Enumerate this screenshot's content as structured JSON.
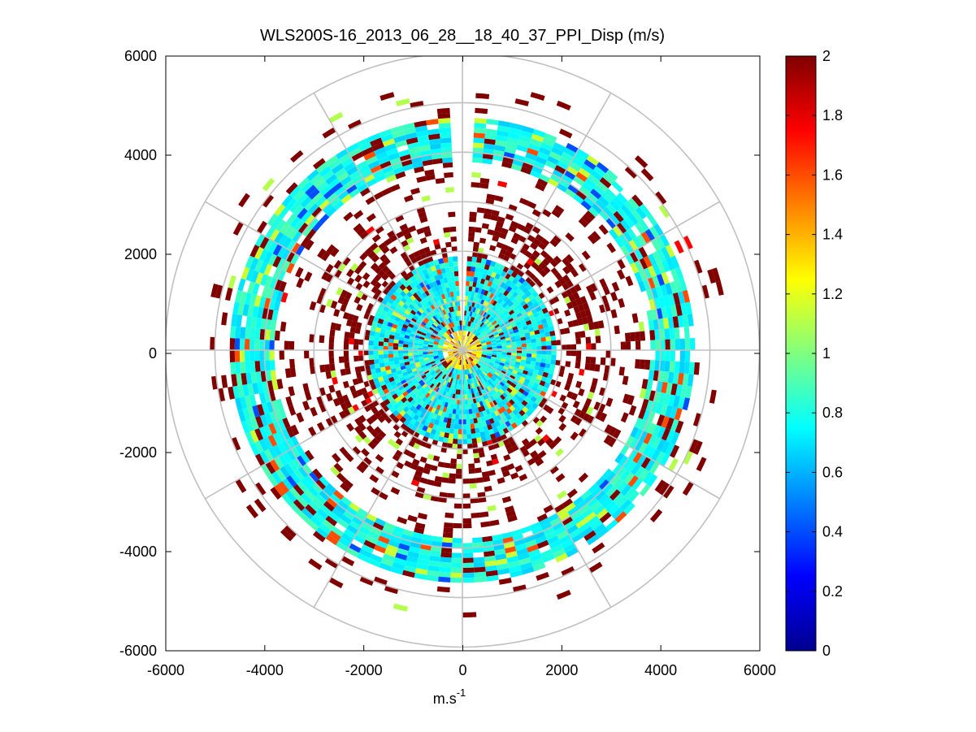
{
  "chart_data": {
    "type": "heatmap",
    "subtype": "polar-ppi",
    "title": "WLS200S-16_2013_06_28__18_40_37_PPI_Disp (m/s)",
    "xlabel": "m.s",
    "xlabel_superscript": "-1",
    "ylabel": "",
    "xlim": [
      -6000,
      6000
    ],
    "ylim": [
      -6000,
      6000
    ],
    "xticks": [
      -6000,
      -4000,
      -2000,
      0,
      2000,
      4000,
      6000
    ],
    "yticks": [
      6000,
      4000,
      2000,
      0,
      -2000,
      -4000,
      -6000
    ],
    "xtick_labels": [
      "-6000",
      "-4000",
      "-2000",
      "0",
      "2000",
      "4000",
      "6000"
    ],
    "ytick_labels": [
      "6000",
      "4000",
      "2000",
      "0",
      "-2000",
      "-4000",
      "-6000"
    ],
    "polar_grid": {
      "rings": [
        1000,
        2000,
        3000,
        4000,
        5000,
        6000
      ],
      "spokes_deg": [
        0,
        30,
        60,
        90,
        120,
        150,
        180,
        210,
        240,
        270,
        300,
        330
      ]
    },
    "gap_sector_deg": [
      -3,
      3
    ],
    "colorbar": {
      "range": [
        0,
        2
      ],
      "ticks": [
        0,
        0.2,
        0.4,
        0.6,
        0.8,
        1,
        1.2,
        1.4,
        1.6,
        1.8,
        2
      ],
      "tick_labels": [
        "0",
        "0.2",
        "0.4",
        "0.6",
        "0.8",
        "1",
        "1.2",
        "1.4",
        "1.6",
        "1.8",
        "2"
      ],
      "colormap": "jet"
    },
    "range_bands": [
      {
        "r": [
          0,
          400
        ],
        "dominant_value": 1.3,
        "coverage": 0.9
      },
      {
        "r": [
          400,
          1900
        ],
        "dominant_value": 0.75,
        "coverage": 1.0
      },
      {
        "r": [
          1900,
          2800
        ],
        "dominant_value": 2.0,
        "coverage": 0.45
      },
      {
        "r": [
          2800,
          3800
        ],
        "dominant_value": 2.0,
        "coverage": 0.22
      },
      {
        "r": [
          3800,
          4700
        ],
        "dominant_value": 0.78,
        "coverage": 0.93
      },
      {
        "r": [
          4700,
          5400
        ],
        "dominant_value": 2.0,
        "coverage": 0.1
      }
    ]
  }
}
